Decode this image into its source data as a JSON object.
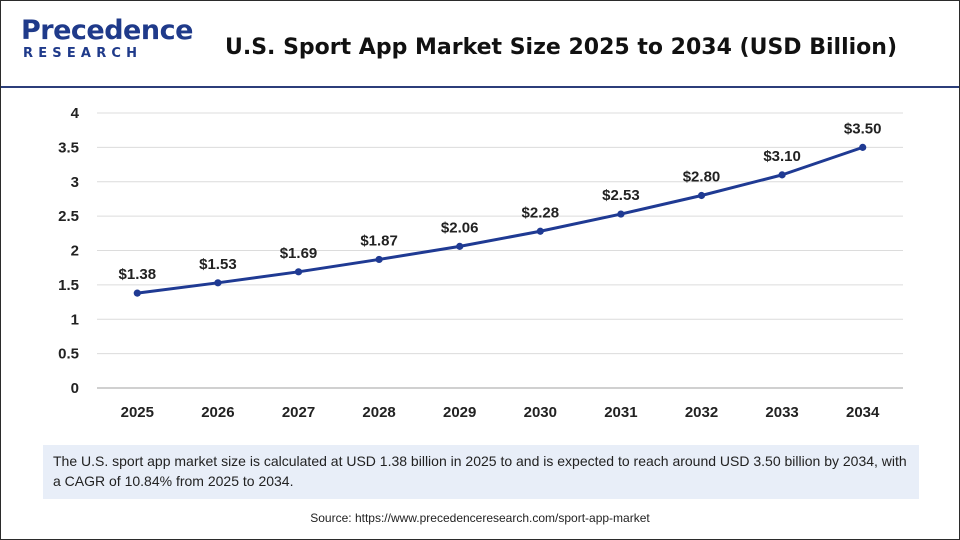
{
  "logo": {
    "line1": "Precedence",
    "line2": "RESEARCH"
  },
  "title": "U.S. Sport App Market Size 2025 to 2034 (USD Billion)",
  "chart_data": {
    "type": "line",
    "title": "U.S. Sport App Market Size 2025 to 2034 (USD Billion)",
    "xlabel": "",
    "ylabel": "",
    "categories": [
      "2025",
      "2026",
      "2027",
      "2028",
      "2029",
      "2030",
      "2031",
      "2032",
      "2033",
      "2034"
    ],
    "values": [
      1.38,
      1.53,
      1.69,
      1.87,
      2.06,
      2.28,
      2.53,
      2.8,
      3.1,
      3.5
    ],
    "data_labels": [
      "$1.38",
      "$1.53",
      "$1.69",
      "$1.87",
      "$2.06",
      "$2.28",
      "$2.53",
      "$2.80",
      "$3.10",
      "$3.50"
    ],
    "ylim": [
      0,
      4
    ],
    "yticks": [
      "0",
      "0.5",
      "1",
      "1.5",
      "2",
      "2.5",
      "3",
      "3.5",
      "4"
    ],
    "grid": true,
    "line_color": "#1f3a93"
  },
  "note": "The U.S. sport app market size is calculated at USD 1.38 billion in 2025 to and is expected to reach around USD 3.50 billion by 2034, with a CAGR of 10.84% from 2025 to 2034.",
  "source": "Source: https://www.precedenceresearch.com/sport-app-market"
}
